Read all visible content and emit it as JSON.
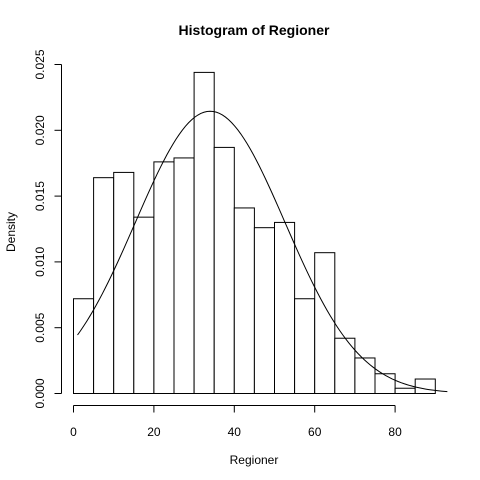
{
  "chart_data": {
    "type": "bar",
    "title": "Histogram of Regioner",
    "xlabel": "Regioner",
    "ylabel": "Density",
    "xlim": [
      0,
      90
    ],
    "ylim": [
      0,
      0.025
    ],
    "x_ticks": [
      0,
      20,
      40,
      60,
      80
    ],
    "y_ticks": [
      "0.000",
      "0.005",
      "0.010",
      "0.015",
      "0.020",
      "0.025"
    ],
    "bin_edges": [
      0,
      5,
      10,
      15,
      20,
      25,
      30,
      35,
      40,
      45,
      50,
      55,
      60,
      65,
      70,
      75,
      80,
      85,
      90
    ],
    "values": [
      0.0072,
      0.0164,
      0.0168,
      0.0134,
      0.0176,
      0.0179,
      0.0244,
      0.0187,
      0.0141,
      0.0126,
      0.013,
      0.0072,
      0.0107,
      0.0042,
      0.0027,
      0.0015,
      0.0004,
      0.0011
    ],
    "density_curve": {
      "type": "normal",
      "mean": 34,
      "sd": 18.6,
      "x_range": [
        1,
        93
      ]
    },
    "grid": false
  }
}
